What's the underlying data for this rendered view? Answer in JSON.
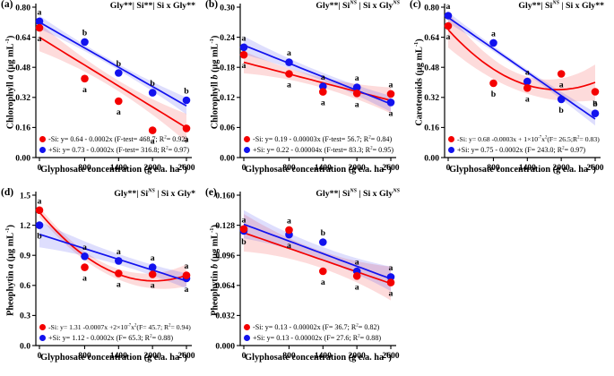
{
  "figure": {
    "background": "#ffffff",
    "series_colors": {
      "red": "#f40000",
      "blue": "#1212ee"
    },
    "band_colors": {
      "red": "rgba(244,0,0,0.14)",
      "blue": "rgba(18,18,238,0.14)"
    }
  },
  "chart_data": [
    {
      "id": "a",
      "panel": "(a)",
      "type": "scatter",
      "title": "Gly**| Si**| Si x Gly**",
      "xlabel": "Glyphosate concentration (g e.a. ha^{-1})",
      "ylabel": "Chlorophyll /{a} (μg mL^{-1})",
      "xlim": [
        0,
        2600
      ],
      "ylim": [
        0,
        0.8
      ],
      "xticks": [
        0,
        800,
        1400,
        2000,
        2600
      ],
      "yticks": [
        0,
        0.16,
        0.32,
        0.48,
        0.64,
        0.8
      ],
      "ytick_labels": [
        "0.00",
        "0.16",
        "0.32",
        "0.48",
        "0.64",
        "0.80"
      ],
      "series": [
        {
          "name": "-Si",
          "color": "red",
          "x": [
            0,
            800,
            1400,
            2000,
            2600
          ],
          "y": [
            0.69,
            0.42,
            0.3,
            0.145,
            0.155
          ],
          "labels": [
            "a",
            "a",
            "a",
            "a",
            "a"
          ],
          "label_side": [
            "below",
            "below",
            "below",
            "below",
            "below"
          ],
          "trend": {
            "kind": "linear",
            "points": [
              [
                0,
                0.64
              ],
              [
                2600,
                0.158
              ]
            ]
          },
          "band": {
            "w0": 0.075,
            "wm": 0.028,
            "w1": 0.075
          },
          "legend": "-Si: y= 0.64 - 0.0002x  (F-test= 468.7; R^{2}= 0.92)"
        },
        {
          "name": "+Si",
          "color": "blue",
          "x": [
            0,
            800,
            1400,
            2000,
            2600
          ],
          "y": [
            0.725,
            0.615,
            0.45,
            0.345,
            0.305
          ],
          "labels": [
            "a",
            "b",
            "b",
            "b",
            "b"
          ],
          "label_side": [
            "above",
            "above",
            "above",
            "above",
            "above"
          ],
          "trend": {
            "kind": "linear",
            "points": [
              [
                0,
                0.72
              ],
              [
                2600,
                0.275
              ]
            ]
          },
          "band": {
            "w0": 0.035,
            "wm": 0.015,
            "w1": 0.045
          },
          "legend": "+Si: y= 0.73 - 0.0002x (F-test= 316.8; R^{2}= 0.97)"
        }
      ]
    },
    {
      "id": "b",
      "panel": "(b)",
      "type": "scatter",
      "title": "Gly**| Si^{/{NS}} | Si x Gly^{/{NS}}",
      "xlabel": "Glyphosate concentration (g e.a. ha^{-1})",
      "ylabel": "Chlorophyll /{b} (μg mL^{-1})",
      "xlim": [
        0,
        2600
      ],
      "ylim": [
        0,
        0.3
      ],
      "xticks": [
        0,
        800,
        1400,
        2000,
        2600
      ],
      "yticks": [
        0,
        0.06,
        0.12,
        0.18,
        0.24,
        0.3
      ],
      "ytick_labels": [
        "0.00",
        "0.06",
        "0.12",
        "0.18",
        "0.24",
        "0.30"
      ],
      "series": [
        {
          "name": "-Si",
          "color": "red",
          "x": [
            0,
            800,
            1400,
            2000,
            2600
          ],
          "y": [
            0.205,
            0.167,
            0.131,
            0.128,
            0.127
          ],
          "labels": [
            "a",
            "a",
            "a",
            "a",
            "a"
          ],
          "label_side": [
            "below",
            "below",
            "below",
            "below",
            "above"
          ],
          "trend": {
            "kind": "linear",
            "points": [
              [
                0,
                0.19
              ],
              [
                2600,
                0.114
              ]
            ]
          },
          "band": {
            "w0": 0.022,
            "wm": 0.01,
            "w1": 0.026
          },
          "legend": "-Si: y= 0.19 - 0.00003x (F-test= 56.7; R^{2}= 0.84)"
        },
        {
          "name": "+Si",
          "color": "blue",
          "x": [
            0,
            800,
            1400,
            2000,
            2600
          ],
          "y": [
            0.22,
            0.19,
            0.142,
            0.14,
            0.11
          ],
          "labels": [
            "a",
            "a",
            "a",
            "a",
            "a"
          ],
          "label_side": [
            "above",
            "above",
            "above",
            "above",
            "below"
          ],
          "trend": {
            "kind": "linear",
            "points": [
              [
                0,
                0.224
              ],
              [
                2600,
                0.107
              ]
            ]
          },
          "band": {
            "w0": 0.018,
            "wm": 0.008,
            "w1": 0.016
          },
          "legend": "+Si: y= 0.22 - 0.00004x (F-test= 83.3; R^{2}= 0.95)"
        }
      ]
    },
    {
      "id": "c",
      "panel": "(c)",
      "type": "scatter",
      "title": "Gly**| Si^{/{NS}} | Si x Gly**",
      "xlabel": "Glyphosate concentration (g e.a. ha^{-1})",
      "ylabel": "Carotenoids (μg mL^{-1})",
      "xlim": [
        0,
        2600
      ],
      "ylim": [
        0,
        0.8
      ],
      "xticks": [
        0,
        800,
        1400,
        2000,
        2600
      ],
      "yticks": [
        0,
        0.16,
        0.32,
        0.48,
        0.64,
        0.8
      ],
      "ytick_labels": [
        "0.00",
        "0.16",
        "0.32",
        "0.48",
        "0.64",
        "0.80"
      ],
      "series": [
        {
          "name": "-Si",
          "color": "red",
          "x": [
            0,
            800,
            1400,
            2000,
            2600
          ],
          "y": [
            0.7,
            0.395,
            0.37,
            0.445,
            0.35
          ],
          "labels": [
            "a",
            "b",
            "a",
            "a",
            "a"
          ],
          "label_side": [
            "below",
            "below",
            "below",
            "below",
            "below"
          ],
          "trend": {
            "kind": "quadratic",
            "points": [
              [
                0,
                0.68
              ],
              [
                1400,
                0.385
              ],
              [
                2600,
                0.4
              ]
            ]
          },
          "band": {
            "w0": 0.095,
            "wm": 0.045,
            "w1": 0.095
          },
          "legend": "-Si: y= 0.68 -0.0003x + 1×10^{-7}x^{2}(F= 26.5;R^{2}= 0.83)"
        },
        {
          "name": "+Si",
          "color": "blue",
          "x": [
            0,
            800,
            1400,
            2000,
            2600
          ],
          "y": [
            0.755,
            0.61,
            0.405,
            0.31,
            0.235
          ],
          "labels": [
            "a",
            "a",
            "a",
            "b",
            "b"
          ],
          "label_side": [
            "above",
            "above",
            "above",
            "below",
            "above"
          ],
          "trend": {
            "kind": "linear",
            "points": [
              [
                0,
                0.745
              ],
              [
                2600,
                0.205
              ]
            ]
          },
          "band": {
            "w0": 0.028,
            "wm": 0.013,
            "w1": 0.035
          },
          "legend": "+Si: y= 0.75 - 0.0002x (F= 243.0; R^{2}= 0.97)"
        }
      ]
    },
    {
      "id": "d",
      "panel": "(d)",
      "type": "scatter",
      "title": "Gly**| Si^{/{NS}} | Si x Gly*",
      "xlabel": "Glyphosate concentration (g e.a. ha^{-1})",
      "ylabel": "Pheophytin /{a} (μg mL^{-1})",
      "xlim": [
        0,
        2600
      ],
      "ylim": [
        0,
        1.5
      ],
      "xticks": [
        0,
        800,
        1400,
        2000,
        2600
      ],
      "yticks": [
        0,
        0.3,
        0.6,
        0.9,
        1.2,
        1.5
      ],
      "ytick_labels": [
        "0.0",
        "0.3",
        "0.6",
        "0.9",
        "1.2",
        "1.5"
      ],
      "series": [
        {
          "name": "-Si",
          "color": "red",
          "x": [
            0,
            800,
            1400,
            2000,
            2600
          ],
          "y": [
            1.35,
            0.78,
            0.72,
            0.71,
            0.7
          ],
          "labels": [
            "a",
            "a",
            "a",
            "a",
            "a"
          ],
          "label_side": [
            "above",
            "below",
            "below",
            "below",
            "above"
          ],
          "trend": {
            "kind": "quadratic",
            "points": [
              [
                0,
                1.33
              ],
              [
                2000,
                0.645
              ],
              [
                2600,
                0.7
              ]
            ]
          },
          "band": {
            "w0": 0.05,
            "wm": 0.05,
            "w1": 0.11
          },
          "legend": "-Si: y= 1.31 -0.0007x +2×10^{-7}x^{2}(F= 45.7; R^{2}= 0.94)"
        },
        {
          "name": "+Si",
          "color": "blue",
          "x": [
            0,
            800,
            1400,
            2000,
            2600
          ],
          "y": [
            1.2,
            0.89,
            0.845,
            0.78,
            0.67
          ],
          "labels": [
            "b",
            "a",
            "a",
            "a",
            "a"
          ],
          "label_side": [
            "below",
            "above",
            "above",
            "above",
            "below"
          ],
          "trend": {
            "kind": "linear",
            "points": [
              [
                0,
                1.11
              ],
              [
                2600,
                0.645
              ]
            ]
          },
          "band": {
            "w0": 0.13,
            "wm": 0.055,
            "w1": 0.075
          },
          "legend": "+Si: y= 1.12 - 0.0002x (F= 65.3; R^{2}= 0.88)"
        }
      ]
    },
    {
      "id": "e",
      "panel": "(e)",
      "type": "scatter",
      "title": "Gly**| Si^{/{NS}} | Si x Gly^{/{NS}}",
      "xlabel": "Glyphosate concentration (g e.a. ha^{-1})",
      "ylabel": "Pheophytin /{b} (μg mL^{-1})",
      "xlim": [
        0,
        2600
      ],
      "ylim": [
        0,
        0.16
      ],
      "xticks": [
        0,
        800,
        1400,
        2000,
        2600
      ],
      "yticks": [
        0,
        0.032,
        0.064,
        0.096,
        0.128,
        0.16
      ],
      "ytick_labels": [
        "0.000",
        "0.032",
        "0.064",
        "0.096",
        "0.128",
        "0.160"
      ],
      "series": [
        {
          "name": "-Si",
          "color": "red",
          "x": [
            0,
            800,
            1400,
            2000,
            2600
          ],
          "y": [
            0.124,
            0.123,
            0.079,
            0.074,
            0.067
          ],
          "labels": [
            "a",
            "a",
            "a",
            "a",
            "a"
          ],
          "label_side": [
            "above",
            "above",
            "below",
            "below",
            "below"
          ],
          "trend": {
            "kind": "linear",
            "points": [
              [
                0,
                0.12
              ],
              [
                2600,
                0.066
              ]
            ]
          },
          "band": {
            "w0": 0.02,
            "wm": 0.009,
            "w1": 0.018
          },
          "legend": "-Si: y= 0.13 - 0.00002x (F= 36.7; R^{2}= 0.82)"
        },
        {
          "name": "+Si",
          "color": "blue",
          "x": [
            0,
            800,
            1400,
            2000,
            2600
          ],
          "y": [
            0.122,
            0.118,
            0.11,
            0.079,
            0.073
          ],
          "labels": [
            "b",
            "a",
            "b",
            "a",
            "a"
          ],
          "label_side": [
            "below",
            "below",
            "above",
            "above",
            "above"
          ],
          "trend": {
            "kind": "linear",
            "points": [
              [
                0,
                0.129
              ],
              [
                2600,
                0.071
              ]
            ]
          },
          "band": {
            "w0": 0.015,
            "wm": 0.007,
            "w1": 0.013
          },
          "legend": "+Si: y= 0.13 - 0.00002x (F= 27.6; R^{2}= 0.88)"
        }
      ]
    }
  ]
}
